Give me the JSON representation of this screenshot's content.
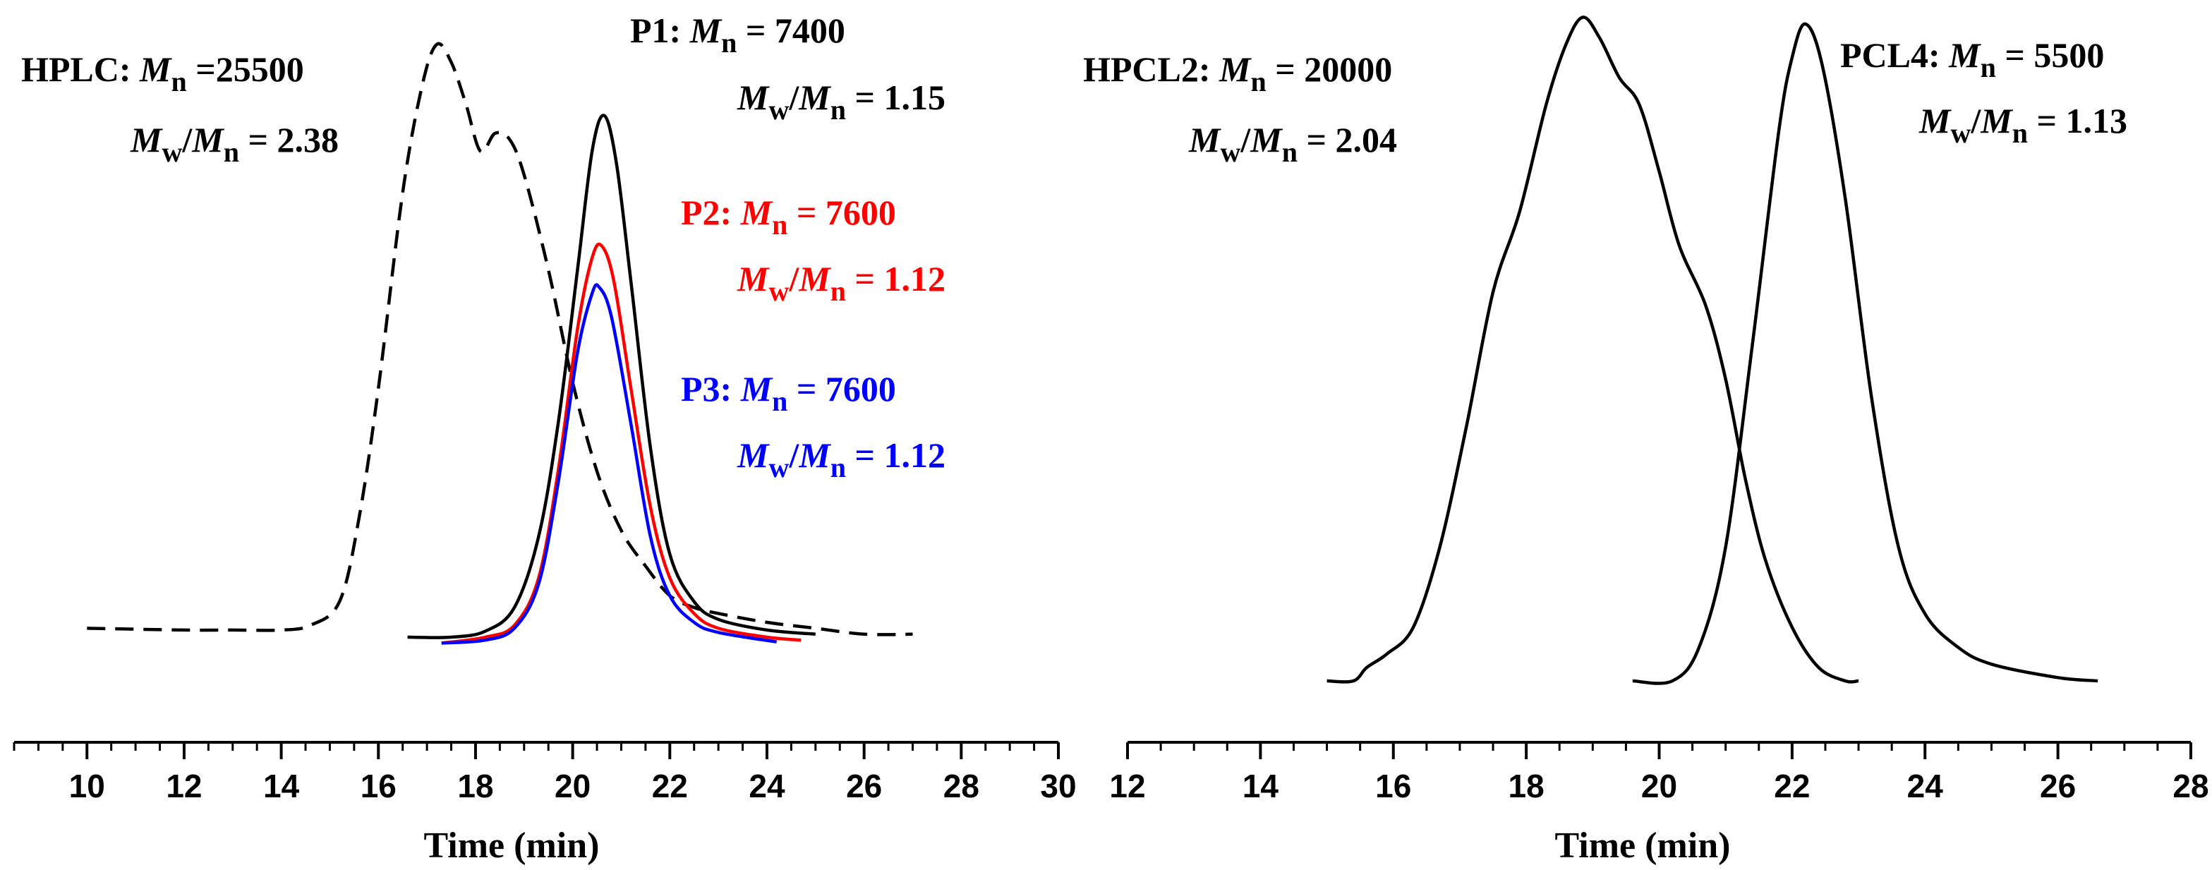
{
  "chart_data": [
    {
      "type": "line",
      "title": "",
      "xlabel": "Time (min)",
      "ylabel": "",
      "xlim": [
        8.5,
        30
      ],
      "ticks": [
        "10",
        "12",
        "14",
        "16",
        "18",
        "20",
        "22",
        "24",
        "26",
        "28",
        "30"
      ],
      "grid": false,
      "series": [
        {
          "name": "HPLC",
          "color": "#000000",
          "dashed": true,
          "annotation": {
            "name": "HPLC: ",
            "mn_label": "M",
            "mn_sub": "n",
            "mn_value": " =25500",
            "pdi_value": " = 2.38"
          },
          "points": [
            [
              10,
              0.015
            ],
            [
              12,
              0.012
            ],
            [
              13,
              0.012
            ],
            [
              14,
              0.012
            ],
            [
              14.6,
              0.02
            ],
            [
              15.2,
              0.06
            ],
            [
              15.6,
              0.2
            ],
            [
              16,
              0.42
            ],
            [
              16.5,
              0.75
            ],
            [
              16.9,
              0.93
            ],
            [
              17.2,
              1.0
            ],
            [
              17.5,
              0.97
            ],
            [
              17.8,
              0.9
            ],
            [
              18.1,
              0.82
            ],
            [
              18.4,
              0.85
            ],
            [
              18.7,
              0.84
            ],
            [
              19.0,
              0.78
            ],
            [
              19.5,
              0.62
            ],
            [
              20,
              0.43
            ],
            [
              20.5,
              0.28
            ],
            [
              21,
              0.18
            ],
            [
              21.5,
              0.12
            ],
            [
              22,
              0.07
            ],
            [
              22.5,
              0.05
            ],
            [
              23,
              0.04
            ],
            [
              24,
              0.025
            ],
            [
              25,
              0.015
            ],
            [
              26,
              0.005
            ],
            [
              27,
              0.005
            ]
          ]
        },
        {
          "name": "P1",
          "color": "#000000",
          "dashed": false,
          "annotation": {
            "name": "P1: ",
            "mn_label": "M",
            "mn_sub": "n",
            "mn_value": " = 7400",
            "pdi_value": " = 1.15"
          },
          "points": [
            [
              16.6,
              0.0
            ],
            [
              17.5,
              0.0
            ],
            [
              18.2,
              0.01
            ],
            [
              18.8,
              0.05
            ],
            [
              19.3,
              0.17
            ],
            [
              19.7,
              0.36
            ],
            [
              20.1,
              0.62
            ],
            [
              20.4,
              0.82
            ],
            [
              20.65,
              0.88
            ],
            [
              20.9,
              0.8
            ],
            [
              21.2,
              0.6
            ],
            [
              21.6,
              0.32
            ],
            [
              22,
              0.14
            ],
            [
              22.5,
              0.06
            ],
            [
              23,
              0.03
            ],
            [
              24,
              0.012
            ],
            [
              25,
              0.005
            ]
          ]
        },
        {
          "name": "P2",
          "color": "#ff0000",
          "dashed": false,
          "annotation": {
            "name": "P2: ",
            "mn_label": "M",
            "mn_sub": "n",
            "mn_value": " = 7600",
            "pdi_value": " = 1.12"
          },
          "points": [
            [
              17.3,
              -0.01
            ],
            [
              18.2,
              0.0
            ],
            [
              18.8,
              0.02
            ],
            [
              19.3,
              0.1
            ],
            [
              19.7,
              0.28
            ],
            [
              20.1,
              0.52
            ],
            [
              20.4,
              0.64
            ],
            [
              20.6,
              0.66
            ],
            [
              20.85,
              0.6
            ],
            [
              21.2,
              0.42
            ],
            [
              21.6,
              0.22
            ],
            [
              22,
              0.1
            ],
            [
              22.5,
              0.04
            ],
            [
              23,
              0.015
            ],
            [
              24,
              0.0
            ],
            [
              24.7,
              -0.005
            ]
          ]
        },
        {
          "name": "P3",
          "color": "#0000ff",
          "dashed": false,
          "annotation": {
            "name": "P3: ",
            "mn_label": "M",
            "mn_sub": "n",
            "mn_value": " = 7600",
            "pdi_value": " = 1.12"
          },
          "points": [
            [
              17.3,
              -0.01
            ],
            [
              18.2,
              -0.005
            ],
            [
              18.8,
              0.015
            ],
            [
              19.3,
              0.09
            ],
            [
              19.7,
              0.26
            ],
            [
              20.1,
              0.48
            ],
            [
              20.4,
              0.58
            ],
            [
              20.55,
              0.59
            ],
            [
              20.8,
              0.54
            ],
            [
              21.2,
              0.36
            ],
            [
              21.6,
              0.17
            ],
            [
              22,
              0.07
            ],
            [
              22.5,
              0.025
            ],
            [
              23,
              0.008
            ],
            [
              24.2,
              -0.008
            ]
          ]
        }
      ]
    },
    {
      "type": "line",
      "title": "",
      "xlabel": "Time (min)",
      "ylabel": "",
      "xlim": [
        12,
        28
      ],
      "ticks": [
        "12",
        "14",
        "16",
        "18",
        "20",
        "22",
        "24",
        "26",
        "28"
      ],
      "grid": false,
      "series": [
        {
          "name": "HPCL2",
          "color": "#000000",
          "dashed": false,
          "annotation": {
            "name": "HPCL2: ",
            "mn_label": "M",
            "mn_sub": "n",
            "mn_value": " = 20000",
            "pdi_value": " = 2.04"
          },
          "points": [
            [
              15,
              0.0
            ],
            [
              15.4,
              0.0
            ],
            [
              15.6,
              0.02
            ],
            [
              15.9,
              0.04
            ],
            [
              16.3,
              0.08
            ],
            [
              16.7,
              0.2
            ],
            [
              17.1,
              0.38
            ],
            [
              17.5,
              0.58
            ],
            [
              17.9,
              0.7
            ],
            [
              18.3,
              0.86
            ],
            [
              18.6,
              0.95
            ],
            [
              18.85,
              0.99
            ],
            [
              19.1,
              0.96
            ],
            [
              19.4,
              0.9
            ],
            [
              19.7,
              0.86
            ],
            [
              20,
              0.76
            ],
            [
              20.3,
              0.65
            ],
            [
              20.7,
              0.56
            ],
            [
              21.0,
              0.45
            ],
            [
              21.3,
              0.3
            ],
            [
              21.6,
              0.18
            ],
            [
              22,
              0.08
            ],
            [
              22.4,
              0.02
            ],
            [
              22.8,
              0.0
            ],
            [
              23,
              0.0
            ]
          ]
        },
        {
          "name": "PCL4",
          "color": "#000000",
          "dashed": false,
          "annotation": {
            "name": "PCL4: ",
            "mn_label": "M",
            "mn_sub": "n",
            "mn_value": " = 5500",
            "pdi_value": " = 1.13"
          },
          "points": [
            [
              19.6,
              0.0
            ],
            [
              20.2,
              0.0
            ],
            [
              20.6,
              0.05
            ],
            [
              21.0,
              0.2
            ],
            [
              21.4,
              0.5
            ],
            [
              21.8,
              0.82
            ],
            [
              22.0,
              0.93
            ],
            [
              22.2,
              0.98
            ],
            [
              22.45,
              0.92
            ],
            [
              22.8,
              0.72
            ],
            [
              23.2,
              0.42
            ],
            [
              23.6,
              0.2
            ],
            [
              24,
              0.1
            ],
            [
              24.5,
              0.05
            ],
            [
              25,
              0.025
            ],
            [
              26,
              0.005
            ],
            [
              26.6,
              0.0
            ]
          ]
        }
      ]
    }
  ]
}
